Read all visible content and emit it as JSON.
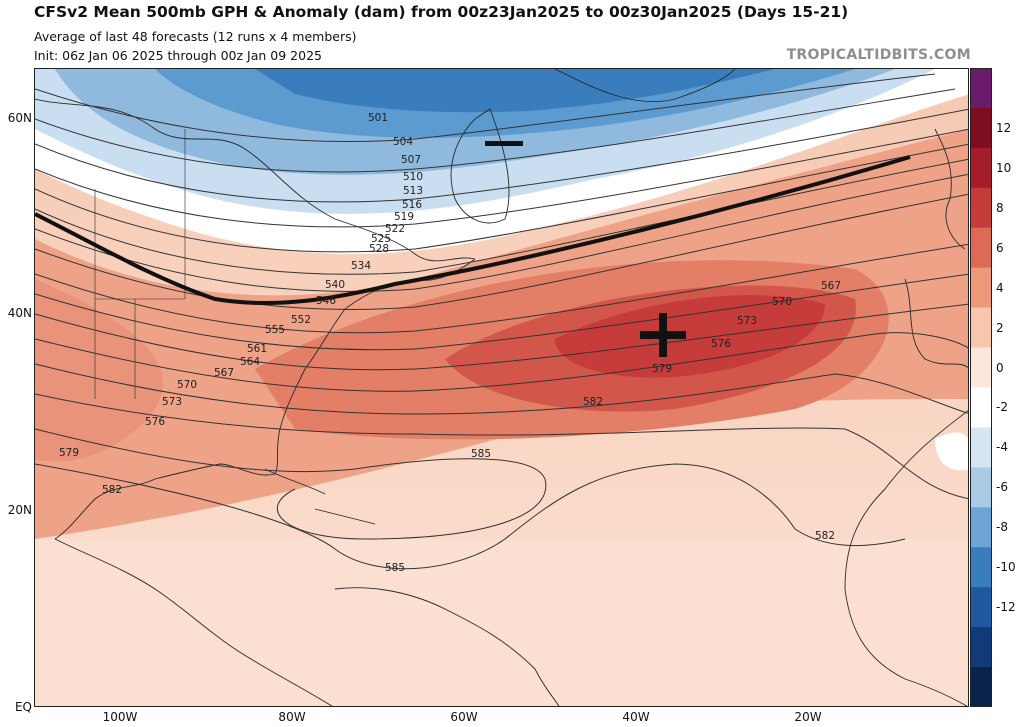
{
  "header": {
    "title": "CFSv2 Mean 500mb GPH & Anomaly (dam) from 00z23Jan2025 to 00z30Jan2025 (Days 15-21)",
    "subtitle1": "Average of last 48 forecasts (12 runs x 4 members)",
    "subtitle2": "Init: 06z Jan 06 2025 through 00z Jan 09 2025",
    "brand": "TROPICALTIDBITS.COM"
  },
  "axes": {
    "lat_labels": [
      "60N",
      "40N",
      "20N",
      "EQ"
    ],
    "lon_labels": [
      "100W",
      "80W",
      "60W",
      "40W",
      "20W"
    ]
  },
  "colorbar": {
    "labels": [
      "12",
      "10",
      "8",
      "6",
      "4",
      "2",
      "0",
      "-2",
      "-4",
      "-6",
      "-8",
      "-10",
      "-12"
    ],
    "colors": [
      "#6a1b6b",
      "#7d0d1f",
      "#a51c2c",
      "#c53c3a",
      "#dc6a55",
      "#ec9879",
      "#f7c6ad",
      "#fde6da",
      "#ffffff",
      "#d6e6f1",
      "#a8cbe3",
      "#6aa5d3",
      "#3a7dbd",
      "#1e59a0",
      "#103b78",
      "#0a234d"
    ]
  },
  "map": {
    "contours": [
      "501",
      "504",
      "507",
      "510",
      "513",
      "516",
      "519",
      "522",
      "525",
      "528",
      "534",
      "540",
      "546",
      "552",
      "555",
      "561",
      "564",
      "567",
      "570",
      "573",
      "576",
      "579",
      "582",
      "585",
      "567",
      "570",
      "573",
      "576",
      "579",
      "582",
      "585",
      "582"
    ],
    "anomaly_markers": {
      "minus": "−",
      "plus": "+"
    }
  }
}
